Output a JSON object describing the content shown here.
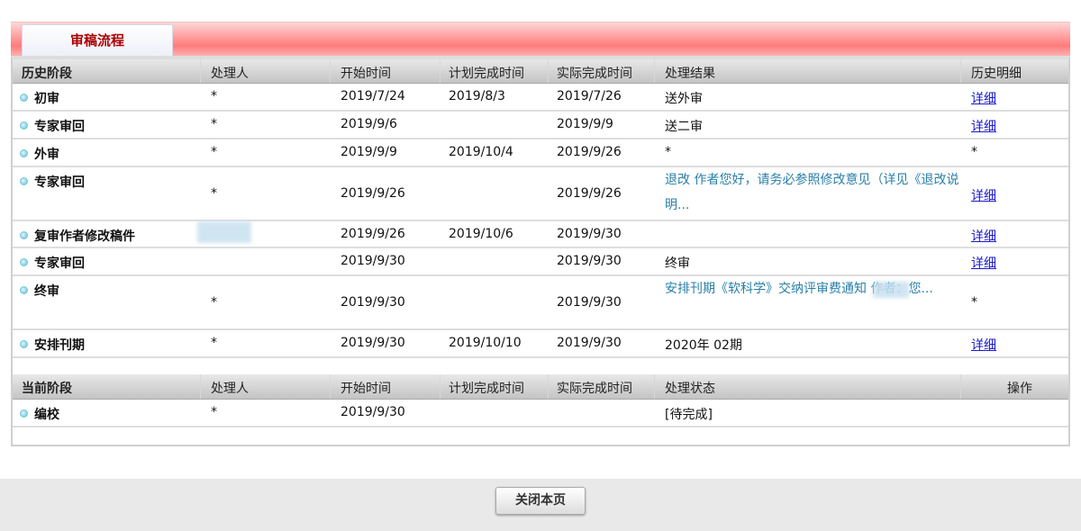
{
  "tab": "审稿流程",
  "history_headers": [
    "历史阶段",
    "处理人",
    "开始时间",
    "计划完成时间",
    "实际完成时间",
    "处理结果",
    "历史明细"
  ],
  "history_rows": [
    {
      "stage": "初审",
      "handler": "*",
      "start": "2019/7/24",
      "plan": "2019/8/3",
      "actual": "2019/7/26",
      "result": "送外审",
      "detail": "详细"
    },
    {
      "stage": "专家审回",
      "handler": "*",
      "start": "2019/9/6",
      "plan": "",
      "actual": "2019/9/9",
      "result": "送二审",
      "detail": "详细"
    },
    {
      "stage": "外审",
      "handler": "*",
      "start": "2019/9/9",
      "plan": "2019/10/4",
      "actual": "2019/9/26",
      "result": "*",
      "detail": "*"
    },
    {
      "stage": "专家审回",
      "handler": "*",
      "start": "2019/9/26",
      "plan": "",
      "actual": "2019/9/26",
      "result": "退改 作者您好，请务必参照修改意见（详见《退改说明...",
      "detail": "详细"
    },
    {
      "stage": "复审作者修改稿件",
      "handler": "",
      "start": "2019/9/26",
      "plan": "2019/10/6",
      "actual": "2019/9/30",
      "result": "",
      "detail": "详细"
    },
    {
      "stage": "专家审回",
      "handler": "",
      "start": "2019/9/30",
      "plan": "",
      "actual": "2019/9/30",
      "result": "终审",
      "detail": "详细"
    },
    {
      "stage": "终审",
      "handler": "*",
      "start": "2019/9/30",
      "plan": "",
      "actual": "2019/9/30",
      "result": "安排刊期《软科学》交纳评审费通知 作者：您...",
      "detail": "*"
    },
    {
      "stage": "安排刊期",
      "handler": "*",
      "start": "2019/9/30",
      "plan": "2019/10/10",
      "actual": "2019/9/30",
      "result": "2020年 02期",
      "detail": "详细"
    }
  ],
  "current_headers": [
    "当前阶段",
    "处理人",
    "开始时间",
    "计划完成时间",
    "实际完成时间",
    "处理状态",
    "操作"
  ],
  "current_rows": [
    {
      "stage": "编校",
      "handler": "*",
      "start": "2019/9/30",
      "plan": "",
      "actual": "",
      "status": "[待完成]"
    }
  ],
  "close_button": "关闭本页"
}
